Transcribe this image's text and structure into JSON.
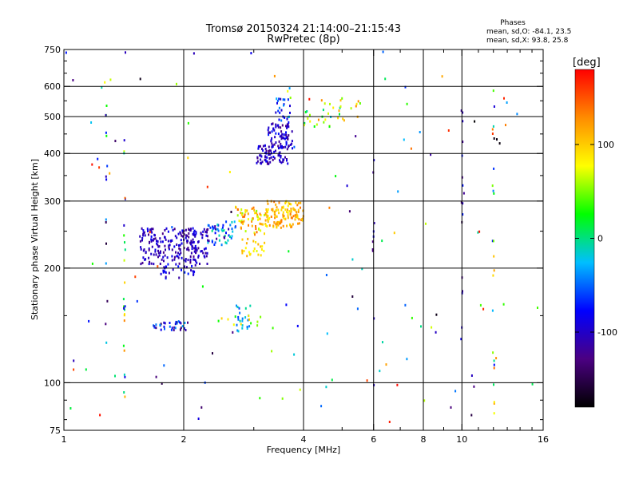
{
  "chart_data": {
    "type": "scatter",
    "title": "Tromsø 20150324 21:14:00–21:15:43",
    "subtitle": "RwPretec (8p)",
    "xlabel": "Frequency [MHz]",
    "ylabel": "Stationary phase Virtual Height [km]",
    "xscale": "log",
    "yscale": "log",
    "xlim": [
      1,
      16
    ],
    "ylim": [
      75,
      750
    ],
    "x_ticks": [
      1,
      2,
      4,
      6,
      8,
      10,
      16
    ],
    "x_tick_labels": [
      "1",
      "2",
      "4",
      "6",
      "8",
      "10",
      "16"
    ],
    "y_ticks": [
      75,
      100,
      200,
      300,
      400,
      500,
      600,
      750
    ],
    "y_tick_labels": [
      "75",
      "100",
      "200",
      "300",
      "400",
      "500",
      "600",
      "750"
    ],
    "x_grid": [
      2,
      4,
      6,
      8,
      10
    ],
    "y_grid": [
      100,
      200,
      300,
      400,
      500,
      600
    ],
    "grid": true,
    "phase_box": {
      "title": "Phases",
      "line1": "mean, sd,O: -84.1, 23.5",
      "line2": "mean, sd,X:  93.8, 25.8"
    },
    "colorbar": {
      "label": "[deg]",
      "min": -180,
      "max": 180,
      "ticks": [
        100,
        0,
        -100
      ],
      "tick_labels": [
        "100",
        "0",
        "-100"
      ],
      "colors": [
        "#000000",
        "#4b0082",
        "#0000ff",
        "#00bfff",
        "#00ff00",
        "#ffff00",
        "#ff8c00",
        "#ff0000"
      ]
    },
    "clusters": [
      {
        "fmin": 1.55,
        "fmax": 2.3,
        "hmin": 205,
        "hmax": 255,
        "phase": -105,
        "spread": 25,
        "count": 230
      },
      {
        "fmin": 1.75,
        "fmax": 2.15,
        "hmin": 188,
        "hmax": 205,
        "phase": -90,
        "spread": 25,
        "count": 30
      },
      {
        "fmin": 2.3,
        "fmax": 2.7,
        "hmin": 230,
        "hmax": 265,
        "phase": -60,
        "spread": 60,
        "count": 50
      },
      {
        "fmin": 2.7,
        "fmax": 3.2,
        "hmin": 245,
        "hmax": 290,
        "phase": 100,
        "spread": 50,
        "count": 60
      },
      {
        "fmin": 3.2,
        "fmax": 4.0,
        "hmin": 255,
        "hmax": 300,
        "phase": 110,
        "spread": 30,
        "count": 130
      },
      {
        "fmin": 2.8,
        "fmax": 3.2,
        "hmin": 215,
        "hmax": 240,
        "phase": 85,
        "spread": 30,
        "count": 25
      },
      {
        "fmin": 3.05,
        "fmax": 3.65,
        "hmin": 375,
        "hmax": 420,
        "phase": -105,
        "spread": 25,
        "count": 80
      },
      {
        "fmin": 3.25,
        "fmax": 3.75,
        "hmin": 410,
        "hmax": 480,
        "phase": -100,
        "spread": 30,
        "count": 70
      },
      {
        "fmin": 3.4,
        "fmax": 3.7,
        "hmin": 480,
        "hmax": 560,
        "phase": -70,
        "spread": 45,
        "count": 25
      },
      {
        "fmin": 4.0,
        "fmax": 5.6,
        "hmin": 470,
        "hmax": 560,
        "phase": 60,
        "spread": 70,
        "count": 35
      },
      {
        "fmin": 1.6,
        "fmax": 2.05,
        "hmin": 137,
        "hmax": 145,
        "phase": -90,
        "spread": 60,
        "count": 35
      },
      {
        "fmin": 2.7,
        "fmax": 2.95,
        "hmin": 135,
        "hmax": 160,
        "phase": -30,
        "spread": 30,
        "count": 22
      },
      {
        "fmin": 2.4,
        "fmax": 3.2,
        "hmin": 140,
        "hmax": 150,
        "phase": 60,
        "spread": 40,
        "count": 12
      },
      {
        "fmin": 1.0,
        "fmax": 16.0,
        "hmin": 78,
        "hmax": 740,
        "phase": 0,
        "spread": 180,
        "count": 130
      }
    ],
    "columns": [
      {
        "f": 1.42,
        "hmin": 90,
        "hmax": 600,
        "phase": 20,
        "spread": 120,
        "count": 25
      },
      {
        "f": 1.28,
        "hmin": 90,
        "hmax": 600,
        "phase": -60,
        "spread": 100,
        "count": 14
      },
      {
        "f": 10.0,
        "hmin": 120,
        "hmax": 600,
        "phase": -100,
        "spread": 30,
        "count": 14
      },
      {
        "f": 12.0,
        "hmin": 80,
        "hmax": 640,
        "phase": 40,
        "spread": 120,
        "count": 22
      },
      {
        "f": 6.0,
        "hmin": 85,
        "hmax": 420,
        "phase": -100,
        "spread": 30,
        "count": 10
      }
    ]
  }
}
